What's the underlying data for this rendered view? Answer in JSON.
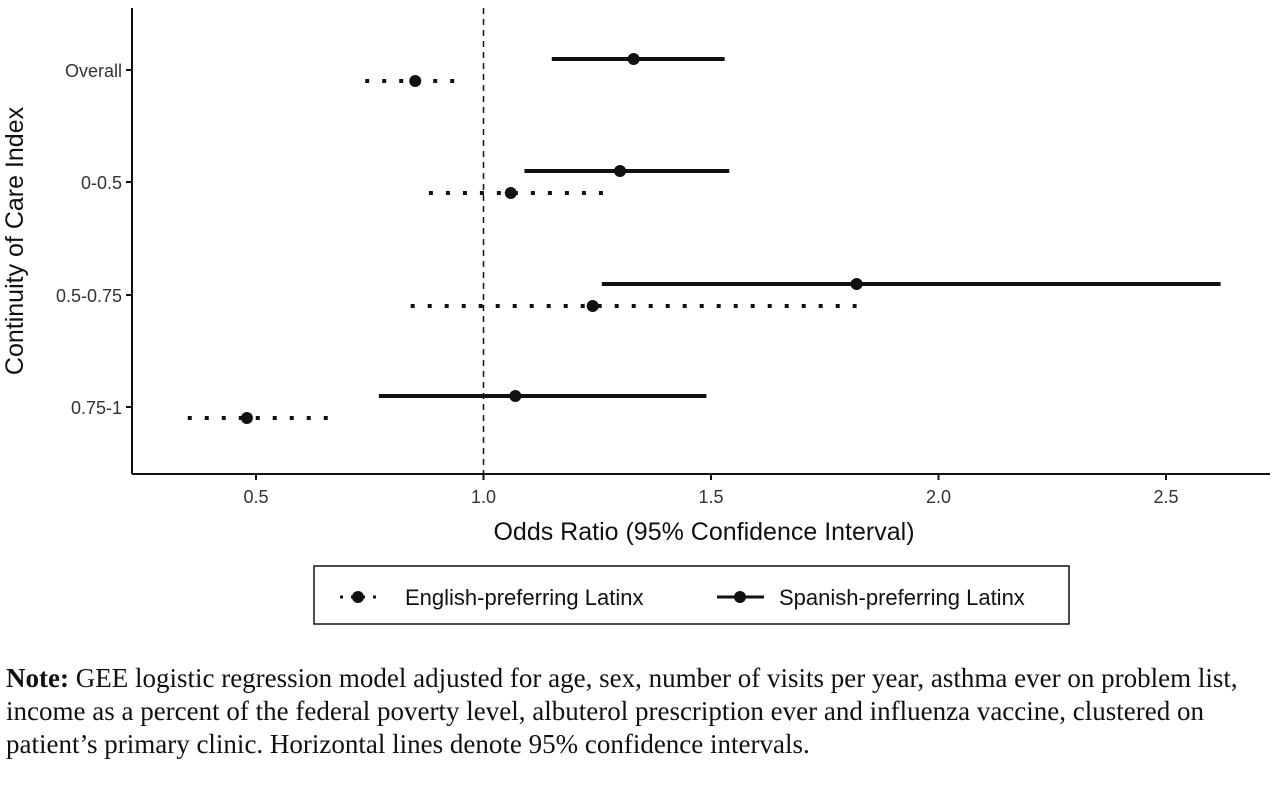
{
  "chart_data": {
    "type": "forest",
    "ylabel": "Continuity of Care Index",
    "xlabel": "Odds Ratio (95% Confidence Interval)",
    "xlim": [
      0.25,
      2.7
    ],
    "xticks": [
      "0.5",
      "1.0",
      "1.5",
      "2.0",
      "2.5"
    ],
    "reference_line": 1.0,
    "categories": [
      "Overall",
      "0-0.5",
      "0.5-0.75",
      "0.75-1"
    ],
    "series": [
      {
        "name": "English-preferring Latinx",
        "line_style": "dotted",
        "points": [
          {
            "category": "Overall",
            "or": 0.85,
            "lower": 0.74,
            "upper": 0.96
          },
          {
            "category": "0-0.5",
            "or": 1.06,
            "lower": 0.88,
            "upper": 1.27
          },
          {
            "category": "0.5-0.75",
            "or": 1.24,
            "lower": 0.84,
            "upper": 1.82
          },
          {
            "category": "0.75-1",
            "or": 0.48,
            "lower": 0.35,
            "upper": 0.66
          }
        ]
      },
      {
        "name": "Spanish-preferring Latinx",
        "line_style": "solid",
        "points": [
          {
            "category": "Overall",
            "or": 1.33,
            "lower": 1.15,
            "upper": 1.53
          },
          {
            "category": "0-0.5",
            "or": 1.3,
            "lower": 1.09,
            "upper": 1.54
          },
          {
            "category": "0.5-0.75",
            "or": 1.82,
            "lower": 1.26,
            "upper": 2.62
          },
          {
            "category": "0.75-1",
            "or": 1.07,
            "lower": 0.77,
            "upper": 1.49
          }
        ]
      }
    ],
    "legend_position": "bottom"
  },
  "note": {
    "label": "Note:",
    "text": " GEE logistic regression model adjusted for age, sex, number of visits per year, asthma ever on problem list, income as a percent of the federal poverty level, albuterol prescription ever and influenza vaccine, clustered on patient’s primary clinic. Horizontal lines denote 95% confidence intervals."
  },
  "colors": {
    "ink": "#111111",
    "axis_text": "#333333"
  }
}
